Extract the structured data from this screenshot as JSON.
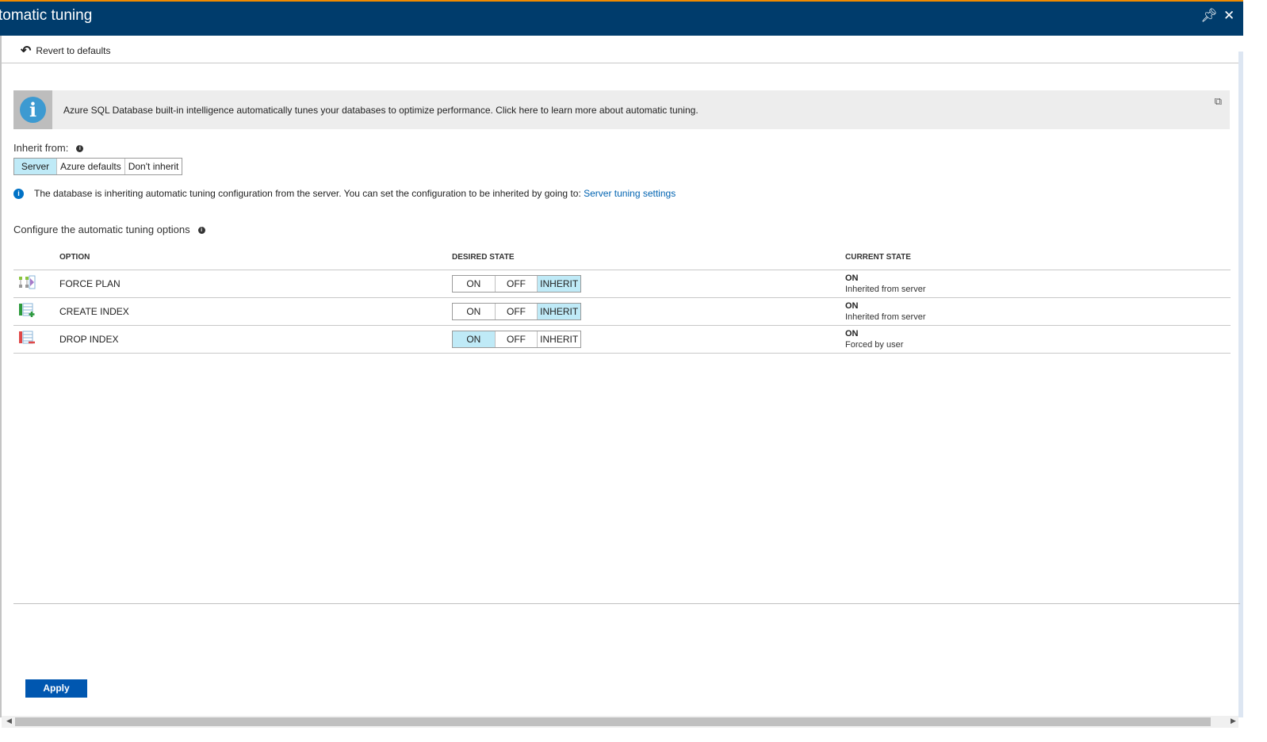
{
  "window": {
    "title": "Automatic tuning",
    "title_visible": "tomatic tuning",
    "pin_icon": "pin-icon",
    "close_icon": "close-icon"
  },
  "toolbar": {
    "revert_label": "Revert to defaults"
  },
  "banner": {
    "text": "Azure SQL Database built-in intelligence automatically tunes your databases to optimize performance. Click here to learn more about automatic tuning."
  },
  "inherit": {
    "label": "Inherit from:",
    "options": [
      "Server",
      "Azure defaults",
      "Don't inherit"
    ],
    "selected": "Server"
  },
  "note": {
    "text": "The database is inheriting automatic tuning configuration from the server. You can set the configuration to be inherited by going to:",
    "link": "Server tuning settings"
  },
  "section": {
    "title": "Configure the automatic tuning options"
  },
  "table": {
    "headers": [
      "OPTION",
      "DESIRED STATE",
      "CURRENT STATE"
    ],
    "state_options": [
      "ON",
      "OFF",
      "INHERIT"
    ],
    "rows": [
      {
        "option": "FORCE PLAN",
        "desired": "INHERIT",
        "current": "ON",
        "current_detail": "Inherited from server"
      },
      {
        "option": "CREATE INDEX",
        "desired": "INHERIT",
        "current": "ON",
        "current_detail": "Inherited from server"
      },
      {
        "option": "DROP INDEX",
        "desired": "ON",
        "current": "ON",
        "current_detail": "Forced by user"
      }
    ]
  },
  "footer": {
    "apply_label": "Apply"
  },
  "colors": {
    "header": "#003c6c",
    "accent_top": "#f08a00",
    "selected": "#bfeaf7",
    "apply": "#0057b0",
    "link": "#0063b1"
  }
}
